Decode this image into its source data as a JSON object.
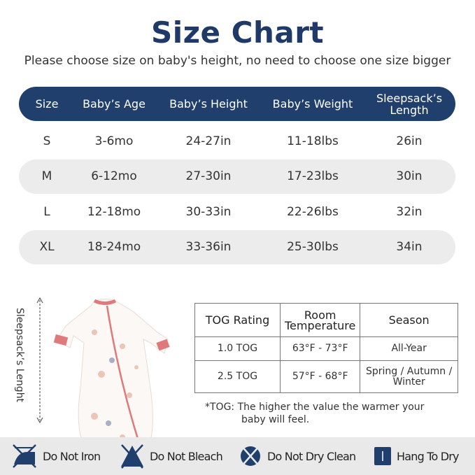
{
  "title": "Size Chart",
  "subtitle": "Please choose size on baby's height, no need to choose one size bigger",
  "size_table": {
    "headers": [
      "Size",
      "Baby’s Age",
      "Baby’s Height",
      "Baby’s Weight",
      "Sleepsack’s Length"
    ],
    "rows": [
      [
        "S",
        "3-6mo",
        "24-27in",
        "11-18lbs",
        "26in"
      ],
      [
        "M",
        "6-12mo",
        "27-30in",
        "17-23lbs",
        "30in"
      ],
      [
        "L",
        "12-18mo",
        "30-33in",
        "22-26lbs",
        "32in"
      ],
      [
        "XL",
        "18-24mo",
        "33-36in",
        "25-30lbs",
        "34in"
      ]
    ]
  },
  "product": {
    "length_label": "Sleepsack’s Lenght"
  },
  "tog_table": {
    "headers": [
      "TOG Rating",
      "Room Temperature",
      "Season"
    ],
    "rows": [
      [
        "1.0 TOG",
        "63°F - 73°F",
        "All-Year"
      ],
      [
        "2.5 TOG",
        "57°F - 68°F",
        "Spring / Autumn / Winter"
      ]
    ]
  },
  "note": {
    "line1": "*TOG: The higher the value the warmer your",
    "line2": "baby will feel."
  },
  "care": [
    {
      "icon": "do-not-iron-icon",
      "label": "Do Not Iron"
    },
    {
      "icon": "do-not-bleach-icon",
      "label": "Do Not Bleach"
    },
    {
      "icon": "do-not-dry-clean-icon",
      "label": "Do Not Dry Clean"
    },
    {
      "icon": "hang-to-dry-icon",
      "label": "Hang To Dry"
    }
  ],
  "colors": {
    "navy": "#213f6c",
    "accent": "#e07a7a",
    "row_gray": "#ececec"
  }
}
